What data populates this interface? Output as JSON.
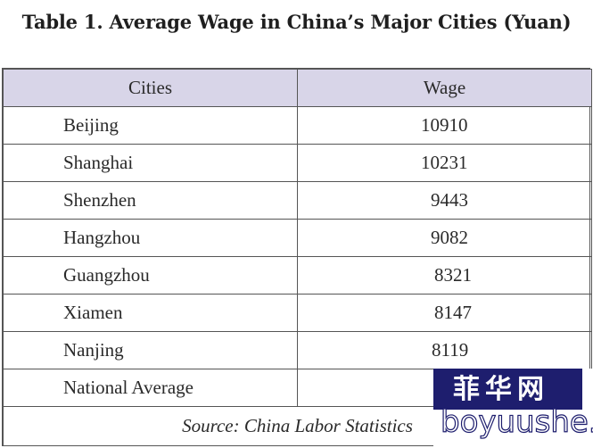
{
  "title": "Table 1. Average Wage in China’s Major Cities (Yuan)",
  "table": {
    "headers": [
      "Cities",
      "Wage"
    ],
    "rows": [
      {
        "city": "Beijing",
        "wage": "10910"
      },
      {
        "city": "Shanghai",
        "wage": "10231"
      },
      {
        "city": "Shenzhen",
        "wage": "9443"
      },
      {
        "city": "Hangzhou",
        "wage": "9082"
      },
      {
        "city": "Guangzhou",
        "wage": "8321"
      },
      {
        "city": "Xiamen",
        "wage": "8147"
      },
      {
        "city": "Nanjing",
        "wage": "8119"
      },
      {
        "city": "National Average",
        "wage": ""
      }
    ],
    "source": "Source: China Labor Statistics"
  },
  "watermark": {
    "chinese": "菲华网",
    "url": "boyuushe.com",
    "bg_color": "#1e1e6e"
  }
}
